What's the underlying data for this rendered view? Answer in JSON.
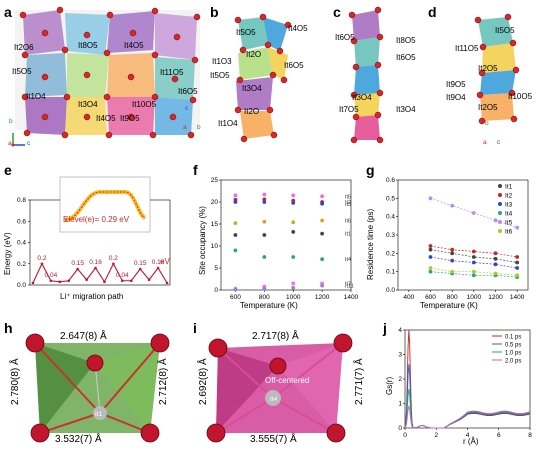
{
  "panels": {
    "a": {
      "letter": "a",
      "labels": [
        "It2O6",
        "It8O5",
        "It4O5",
        "It5O5",
        "It11O5",
        "It6O5",
        "It1O4",
        "It10O5",
        "It2O6",
        "It3O4",
        "It4O5",
        "It9O5",
        "It6O5",
        "It11O5"
      ],
      "axes": [
        "b",
        "c",
        "a"
      ]
    },
    "b": {
      "letter": "b",
      "labels": [
        "It5O5",
        "It4O5",
        "It1O3",
        "It2O",
        "It6O5",
        "It5O5",
        "It3O4",
        "It2O",
        "It1O4"
      ],
      "axes": [
        "c",
        "b",
        "a"
      ]
    },
    "c": {
      "letter": "c",
      "labels": [
        "It6O5",
        "It8O5",
        "It6O5",
        "It3O4",
        "It7O5",
        "It3O4"
      ],
      "axes": []
    },
    "d": {
      "letter": "d",
      "labels": [
        "It5O5",
        "It11O5",
        "It2O5",
        "It9O5",
        "It10O5",
        "It9O4",
        "It2O5"
      ],
      "axes": [
        "b",
        "c",
        "a"
      ]
    },
    "e": {
      "letter": "e",
      "inset_text": "Elevel(e)= 0.29 eV",
      "unit": "eV",
      "xlabel": "Li⁺ migration path",
      "ylabel": "Energy (eV)",
      "barrier_labels": [
        "0.2",
        "0.04",
        "0.15",
        "0.16",
        "0.2",
        "0.04",
        "0.15",
        "0.16"
      ]
    },
    "f": {
      "letter": "f",
      "xlabel": "Temperature (K)",
      "ylabel": "Site occupancy (%)"
    },
    "g": {
      "letter": "g",
      "xlabel": "Temperature (K)",
      "ylabel": "Residence time (ps)"
    },
    "h": {
      "letter": "h",
      "center": "It1",
      "site": "Li",
      "edges": {
        "top": "2.647(8) Å",
        "right": "2.712(8) Å",
        "left": "2.780(8) Å",
        "bottom": "3.532(7) Å"
      }
    },
    "i": {
      "letter": "i",
      "center": "It4",
      "site": "Li",
      "note": "Off-centered",
      "edges": {
        "top": "2.717(8) Å",
        "right": "2.771(7) Å",
        "left": "2.692(8) Å",
        "bottom": "3.555(7) Å"
      }
    },
    "j": {
      "letter": "j",
      "xlabel": "r (Å)",
      "ylabel": "Gs(r)"
    }
  },
  "chart_data": [
    {
      "type": "line",
      "panel": "e",
      "title": "",
      "xlabel": "Li⁺ migration path",
      "ylabel": "Energy (eV)",
      "ylim": [
        0,
        0.8
      ],
      "yticks": [
        0.0,
        0.2,
        0.4,
        0.6,
        0.8
      ],
      "series": [
        {
          "values": [
            0.02,
            0.2,
            0.04,
            0.03,
            0.04,
            0.15,
            0.05,
            0.16,
            0.03,
            0.2,
            0.04,
            0.04,
            0.15,
            0.05,
            0.16,
            0.02
          ]
        }
      ]
    },
    {
      "type": "scatter",
      "panel": "f",
      "xlabel": "Temperature (K)",
      "ylabel": "Site occupancy (%)",
      "xlim": [
        500,
        1400
      ],
      "ylim": [
        0,
        25
      ],
      "xticks": [
        600,
        800,
        1000,
        1200,
        1400
      ],
      "yticks": [
        0,
        5,
        10,
        15,
        20,
        25
      ],
      "x": [
        600,
        800,
        1000,
        1200
      ],
      "series": [
        {
          "name": "It5",
          "color": "#ff66cc",
          "values": [
            21.5,
            21.7,
            21.5,
            21.3
          ]
        },
        {
          "name": "It2",
          "color": "#cc2222",
          "values": [
            20.5,
            20.6,
            20.3,
            20.0
          ]
        },
        {
          "name": "It3",
          "color": "#3344cc",
          "values": [
            20.0,
            20.0,
            19.8,
            19.6
          ]
        },
        {
          "name": "It6",
          "color": "#ccaa22",
          "values": [
            15.2,
            15.5,
            15.4,
            15.8
          ]
        },
        {
          "name": "It1",
          "color": "#444444",
          "values": [
            12.5,
            12.5,
            13.2,
            12.8
          ]
        },
        {
          "name": "It4",
          "color": "#22aa88",
          "values": [
            9.0,
            7.5,
            7.5,
            7.0
          ]
        },
        {
          "name": "It7",
          "color": "#ff66ff",
          "values": [
            0.3,
            0.8,
            1.5,
            1.5
          ]
        },
        {
          "name": "It11",
          "color": "#8888cc",
          "values": [
            0.1,
            0.3,
            0.5,
            1.0
          ]
        }
      ]
    },
    {
      "type": "scatter",
      "panel": "g",
      "xlabel": "Temperature (K)",
      "ylabel": "Residence time (ps)",
      "xlim": [
        300,
        1500
      ],
      "ylim": [
        0,
        0.6
      ],
      "xticks": [
        400,
        600,
        800,
        1000,
        1200,
        1400
      ],
      "yticks": [
        0.0,
        0.1,
        0.2,
        0.3,
        0.4,
        0.5,
        0.6
      ],
      "x": [
        600,
        800,
        1000,
        1200,
        1400
      ],
      "series": [
        {
          "name": "It1",
          "color": "#444444",
          "values": [
            0.22,
            0.2,
            0.18,
            0.17,
            0.15
          ]
        },
        {
          "name": "It2",
          "color": "#cc2222",
          "values": [
            0.24,
            0.22,
            0.21,
            0.2,
            0.18
          ]
        },
        {
          "name": "It3",
          "color": "#3344cc",
          "values": [
            0.18,
            0.16,
            0.15,
            0.14,
            0.12
          ]
        },
        {
          "name": "It4",
          "color": "#22aa88",
          "values": [
            0.1,
            0.09,
            0.08,
            0.08,
            0.07
          ]
        },
        {
          "name": "It5",
          "color": "#bb88ff",
          "values": [
            0.5,
            0.46,
            0.42,
            0.38,
            0.34
          ]
        },
        {
          "name": "It6",
          "color": "#aacc22",
          "values": [
            0.12,
            0.1,
            0.1,
            0.09,
            0.08
          ]
        }
      ]
    },
    {
      "type": "line",
      "panel": "j",
      "xlabel": "r (Å)",
      "ylabel": "Gs(r)",
      "xlim": [
        0,
        8
      ],
      "ylim": [
        0,
        4
      ],
      "xticks": [
        0,
        2,
        4,
        6,
        8
      ],
      "yticks": [
        0,
        1,
        2,
        3,
        4
      ],
      "series": [
        {
          "name": "0.1 ps",
          "color": "#cc2222"
        },
        {
          "name": "0.5 ps",
          "color": "#2266cc"
        },
        {
          "name": "1.0 ps",
          "color": "#22aa66"
        },
        {
          "name": "2.0 ps",
          "color": "#bb66cc"
        }
      ]
    }
  ]
}
